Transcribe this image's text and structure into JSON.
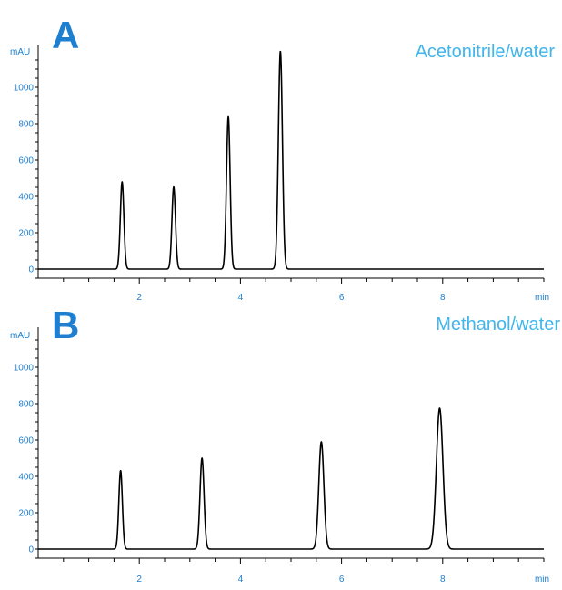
{
  "colors": {
    "accent": "#1e7fd0",
    "title": "#3fb6ec",
    "trace": "#000000",
    "axis": "#000000"
  },
  "chart_data": [
    {
      "type": "line",
      "panel_label": "A",
      "title": "Acetonitrile/water",
      "ylabel": "mAU",
      "xlabel": "min",
      "xlim": [
        0,
        10
      ],
      "ylim": [
        -60,
        1220
      ],
      "x_ticks": [
        2,
        4,
        6,
        8
      ],
      "y_ticks": [
        0,
        200,
        400,
        600,
        800,
        1000
      ],
      "grid": false,
      "peaks": [
        {
          "rt": 1.66,
          "height": 480,
          "width": 0.035
        },
        {
          "rt": 2.68,
          "height": 452,
          "width": 0.035
        },
        {
          "rt": 3.76,
          "height": 838,
          "width": 0.036
        },
        {
          "rt": 4.79,
          "height": 1198,
          "width": 0.04
        }
      ]
    },
    {
      "type": "line",
      "panel_label": "B",
      "title": "Methanol/water",
      "ylabel": "mAU",
      "xlabel": "min",
      "xlim": [
        0,
        10
      ],
      "ylim": [
        -60,
        1220
      ],
      "x_ticks": [
        2,
        4,
        6,
        8
      ],
      "y_ticks": [
        0,
        200,
        400,
        600,
        800,
        1000
      ],
      "grid": false,
      "peaks": [
        {
          "rt": 1.63,
          "height": 432,
          "width": 0.035
        },
        {
          "rt": 3.24,
          "height": 500,
          "width": 0.04
        },
        {
          "rt": 5.6,
          "height": 590,
          "width": 0.05
        },
        {
          "rt": 7.94,
          "height": 775,
          "width": 0.065
        }
      ]
    }
  ]
}
